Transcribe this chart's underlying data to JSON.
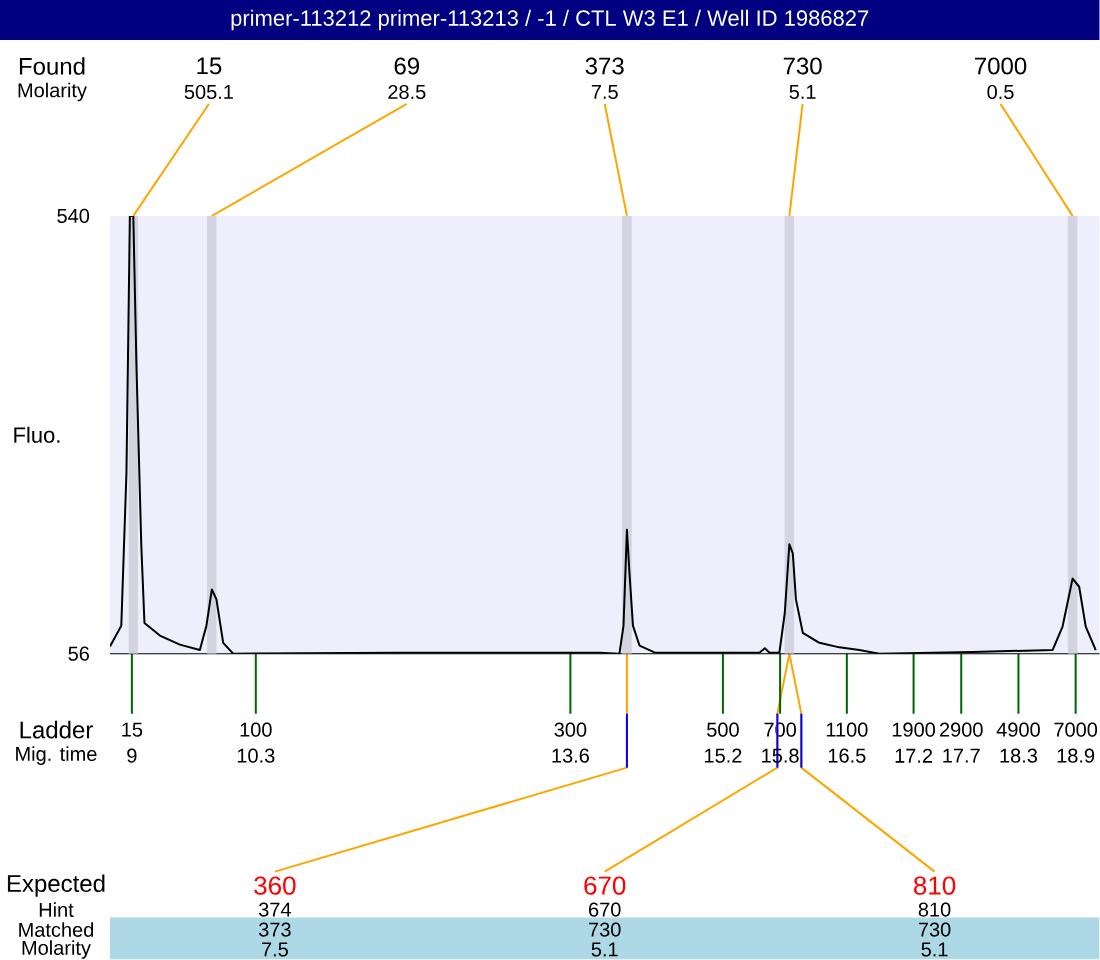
{
  "chart_data": {
    "type": "line",
    "title": "primer-113212  primer-113213 / -1 / CTL W3 E1  / Well ID 1986827",
    "ylabel": "Fluo.",
    "xlim": [
      8.77,
      19.15
    ],
    "ylim": [
      56,
      540
    ],
    "yticks": [
      56,
      540
    ],
    "xticks": [
      9,
      10.3,
      13.6,
      15.2,
      15.8,
      16.5,
      17.2,
      17.7,
      18.3,
      18.9
    ],
    "series": [
      {
        "color": "#000000",
        "x": [
          8.77,
          8.889,
          8.943,
          8.979,
          9.015,
          9.048,
          9.099,
          9.132,
          9.294,
          9.503,
          9.713,
          9.782,
          9.839,
          9.887,
          9.958,
          10.063,
          11.809,
          13.906,
          14.115,
          14.157,
          14.193,
          14.22,
          14.256,
          14.325,
          14.493,
          15.583,
          15.64,
          15.688,
          15.792,
          15.849,
          15.897,
          15.933,
          15.966,
          16.038,
          16.212,
          16.421,
          16.631,
          16.841,
          17.82,
          18.658,
          18.763,
          18.868,
          18.937,
          19.006,
          19.111
        ],
        "values": [
          64,
          87,
          256,
          540,
          540,
          374,
          175,
          90,
          76,
          66,
          60,
          87,
          127,
          116,
          68,
          56,
          57,
          57,
          56,
          87,
          193,
          145,
          87,
          65,
          57,
          57,
          62,
          57,
          57,
          101,
          177,
          167,
          116,
          79,
          68,
          63,
          60,
          56,
          58,
          60,
          86,
          139,
          130,
          86,
          60
        ]
      }
    ],
    "bands": [
      {
        "axis": "x",
        "from": 8.965,
        "to": 9.065,
        "color": "#d4d4e0"
      },
      {
        "axis": "x",
        "from": 9.789,
        "to": 9.889,
        "color": "#d4d4e0"
      },
      {
        "axis": "x",
        "from": 14.143,
        "to": 14.243,
        "color": "#d4d4e0"
      },
      {
        "axis": "x",
        "from": 15.847,
        "to": 15.947,
        "color": "#d4d4e0"
      },
      {
        "axis": "x",
        "from": 18.818,
        "to": 18.918,
        "color": "#d4d4e0"
      }
    ],
    "annotations": [
      "Found",
      {
        "text": "15",
        "x": 9.015,
        "y": 540
      },
      {
        "text": "69",
        "x": 9.839,
        "y": 540
      },
      {
        "text": "373",
        "x": 14.193,
        "y": 540
      },
      {
        "text": "730",
        "x": 15.897,
        "y": 540
      },
      {
        "text": "7000",
        "x": 18.868,
        "y": 540
      },
      "Molarity",
      "505.1",
      "28.5",
      "7.5",
      "5.1",
      "0.5",
      "Ladder",
      "Mig. time",
      "15",
      "100",
      "300",
      "500",
      "700",
      "1100",
      "1900",
      "2900",
      "4900",
      "7000",
      "Expected",
      {
        "text": "360",
        "x": 14.193,
        "y": 56
      },
      {
        "text": "670",
        "x": 15.897,
        "y": 56
      },
      {
        "text": "810",
        "x": 15.897,
        "y": 56
      },
      "Hint",
      "374",
      "670",
      "810",
      "Matched",
      "373",
      "730",
      "730",
      "Molarity",
      "7.5",
      "5.1",
      "5.1"
    ]
  }
}
